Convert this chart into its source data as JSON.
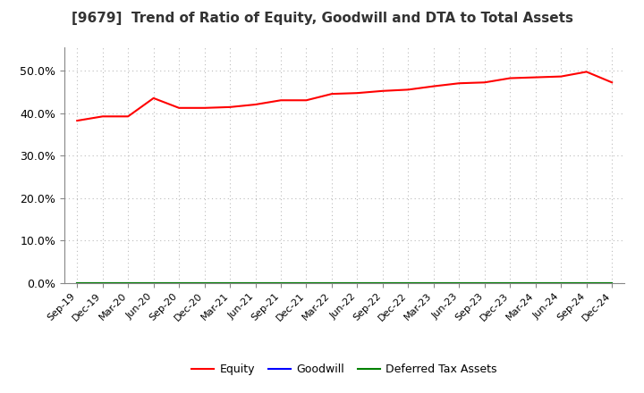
{
  "title": "[9679]  Trend of Ratio of Equity, Goodwill and DTA to Total Assets",
  "x_labels": [
    "Sep-19",
    "Dec-19",
    "Mar-20",
    "Jun-20",
    "Sep-20",
    "Dec-20",
    "Mar-21",
    "Jun-21",
    "Sep-21",
    "Dec-21",
    "Mar-22",
    "Jun-22",
    "Sep-22",
    "Dec-22",
    "Mar-23",
    "Jun-23",
    "Sep-23",
    "Dec-23",
    "Mar-24",
    "Jun-24",
    "Sep-24",
    "Dec-24"
  ],
  "equity": [
    0.382,
    0.392,
    0.392,
    0.435,
    0.412,
    0.412,
    0.414,
    0.42,
    0.43,
    0.43,
    0.445,
    0.447,
    0.452,
    0.455,
    0.463,
    0.47,
    0.472,
    0.482,
    0.484,
    0.486,
    0.497,
    0.472
  ],
  "goodwill": [
    0.0,
    0.0,
    0.0,
    0.0,
    0.0,
    0.0,
    0.0,
    0.0,
    0.0,
    0.0,
    0.0,
    0.0,
    0.0,
    0.0,
    0.0,
    0.0,
    0.0,
    0.0,
    0.0,
    0.0,
    0.0,
    0.0
  ],
  "dta": [
    0.0,
    0.0,
    0.0,
    0.0,
    0.0,
    0.0,
    0.0,
    0.0,
    0.0,
    0.0,
    0.0,
    0.0,
    0.0,
    0.0,
    0.0,
    0.0,
    0.0,
    0.0,
    0.0,
    0.0,
    0.0,
    0.0
  ],
  "equity_color": "#FF0000",
  "goodwill_color": "#0000FF",
  "dta_color": "#008000",
  "ylim": [
    0.0,
    0.555
  ],
  "yticks": [
    0.0,
    0.1,
    0.2,
    0.3,
    0.4,
    0.5
  ],
  "background_color": "#FFFFFF",
  "plot_bg_color": "#FFFFFF",
  "grid_color": "#BBBBBB",
  "title_fontsize": 11,
  "tick_fontsize": 8,
  "legend_labels": [
    "Equity",
    "Goodwill",
    "Deferred Tax Assets"
  ]
}
